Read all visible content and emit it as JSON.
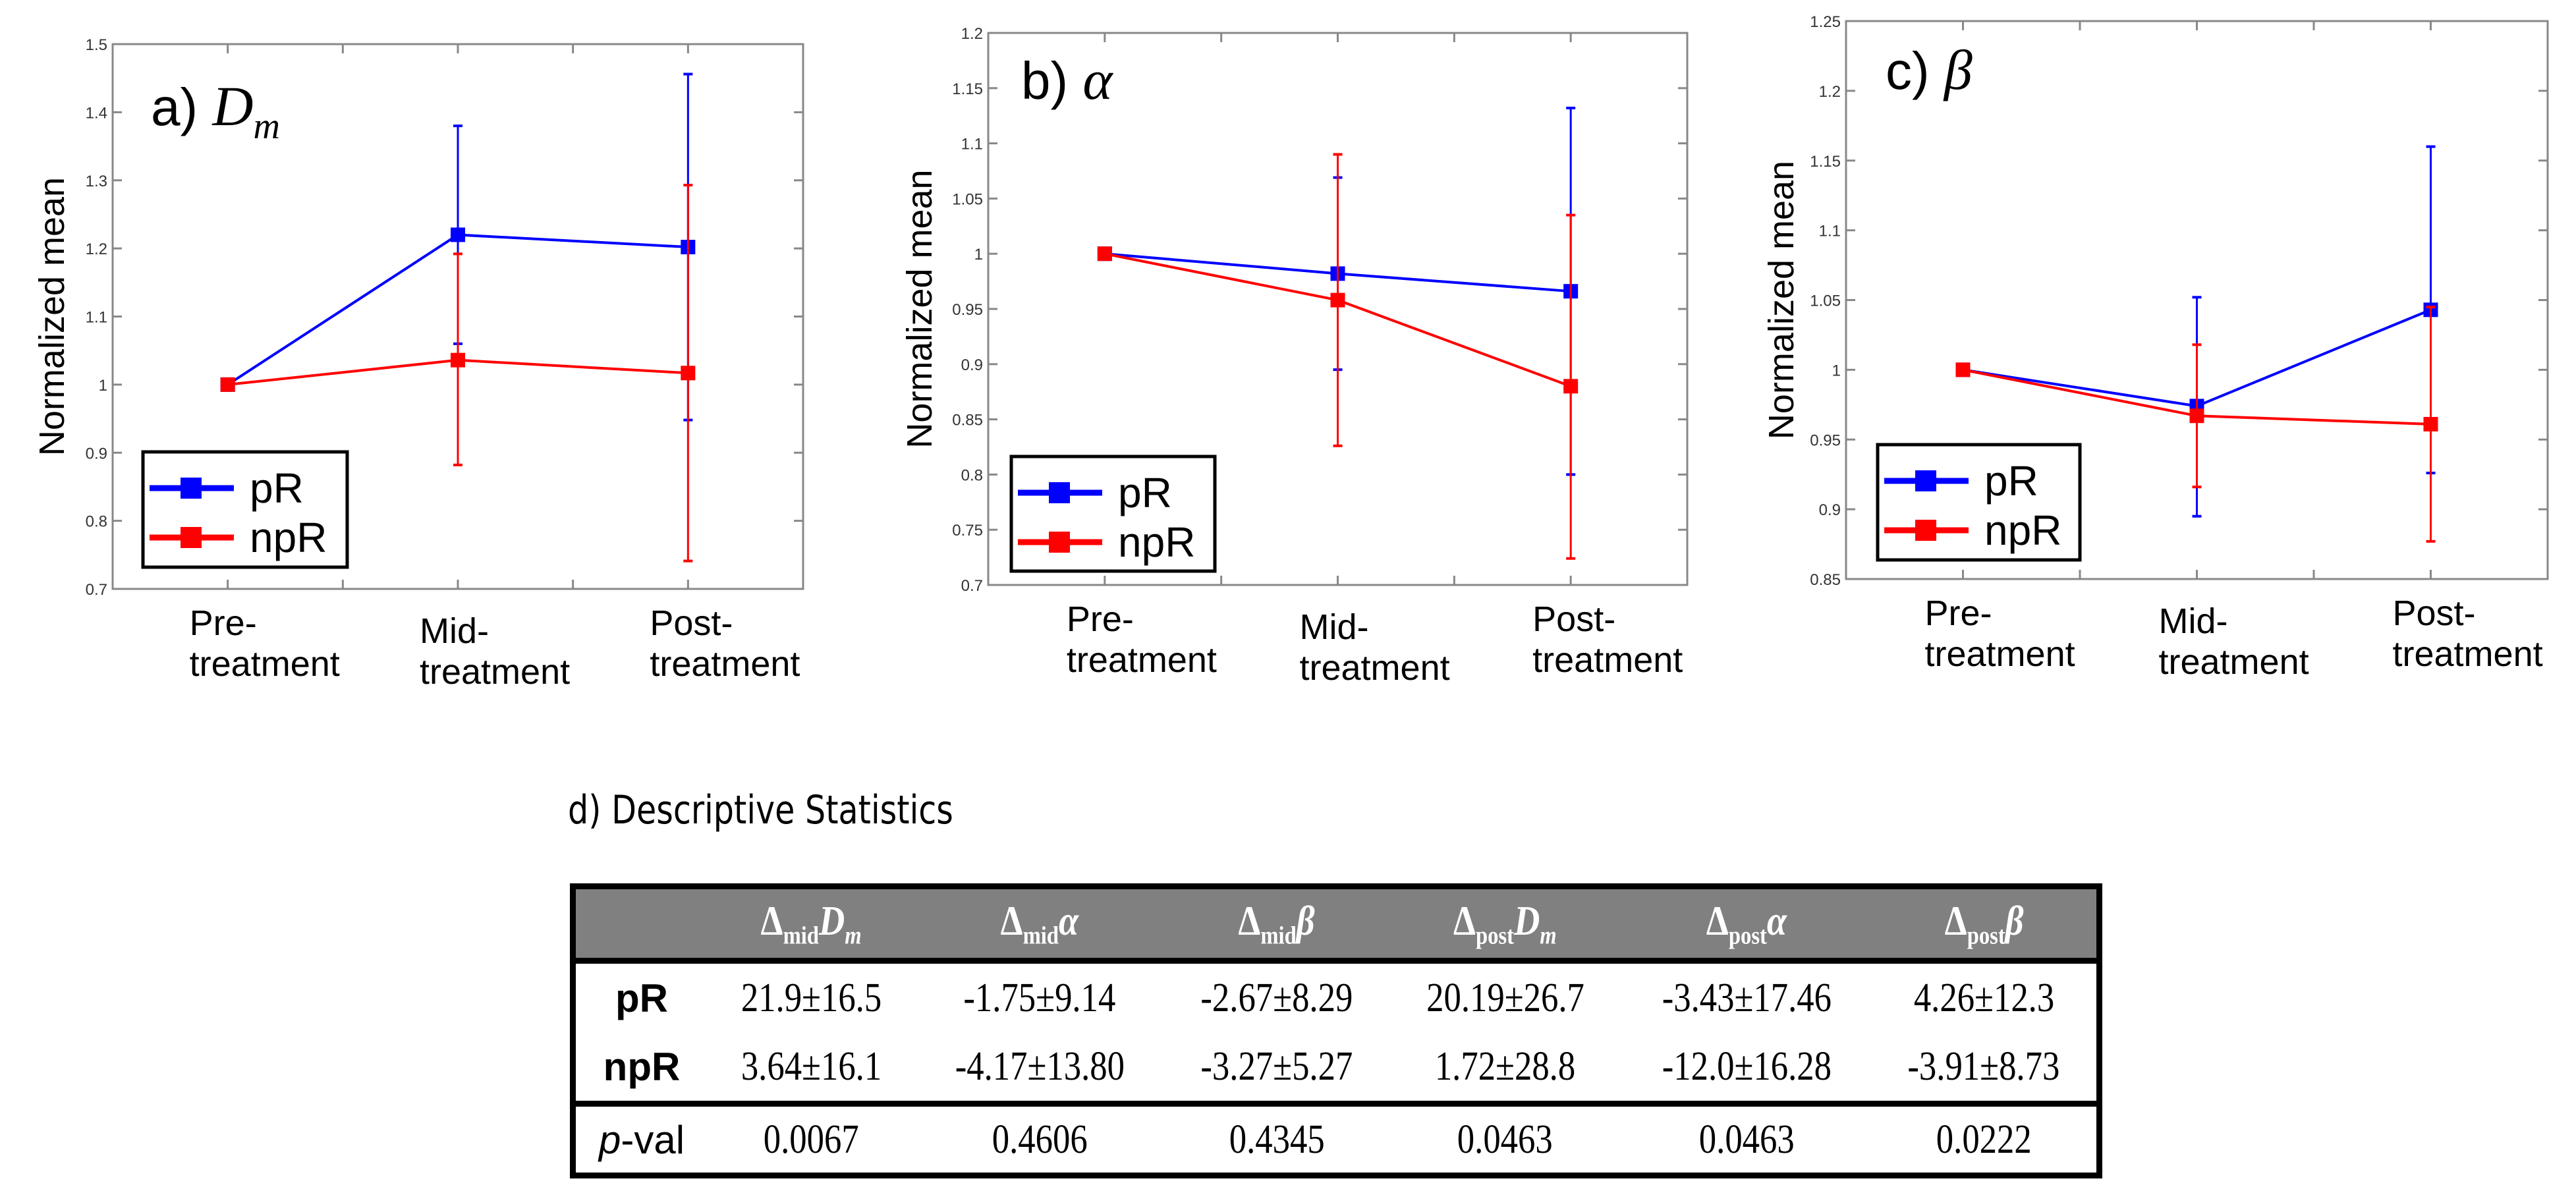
{
  "chart_data": [
    {
      "type": "line",
      "panel_label": "a)",
      "title_var": "D",
      "title_sub": "m",
      "ylabel": "Normalized mean",
      "categories": [
        "Pre-\ntreatment",
        "Mid-\ntreatment",
        "Post-\ntreatment"
      ],
      "ylim": [
        0.7,
        1.5
      ],
      "yticks": [
        0.7,
        0.8,
        0.9,
        1,
        1.1,
        1.2,
        1.3,
        1.4,
        1.5
      ],
      "ytick_labels": [
        "0.7",
        "0.8",
        "0.9",
        "1",
        "1.1",
        "1.2",
        "1.3",
        "1.4",
        "1.5"
      ],
      "legend_placement": "bottom-left",
      "grid": false,
      "series": [
        {
          "name": "pR",
          "color": "#0000ff",
          "values": [
            1.0,
            1.22,
            1.202
          ],
          "err_low": [
            1.0,
            1.06,
            0.948
          ],
          "err_high": [
            1.0,
            1.38,
            1.456
          ]
        },
        {
          "name": "npR",
          "color": "#ff0000",
          "values": [
            1.0,
            1.036,
            1.017
          ],
          "err_low": [
            1.0,
            0.882,
            0.741
          ],
          "err_high": [
            1.0,
            1.192,
            1.293
          ]
        }
      ]
    },
    {
      "type": "line",
      "panel_label": "b)",
      "title_var": "α",
      "title_sub": "",
      "ylabel": "Normalized mean",
      "categories": [
        "Pre-\ntreatment",
        "Mid-\ntreatment",
        "Post-\ntreatment"
      ],
      "ylim": [
        0.7,
        1.2
      ],
      "yticks": [
        0.7,
        0.75,
        0.8,
        0.85,
        0.9,
        0.95,
        1,
        1.05,
        1.1,
        1.15,
        1.2
      ],
      "ytick_labels": [
        "0.7",
        "0.75",
        "0.8",
        "0.85",
        "0.9",
        "0.95",
        "1",
        "1.05",
        "1.1",
        "1.15",
        "1.2"
      ],
      "legend_placement": "bottom-left",
      "grid": false,
      "series": [
        {
          "name": "pR",
          "color": "#0000ff",
          "values": [
            1.0,
            0.982,
            0.966
          ],
          "err_low": [
            1.0,
            0.895,
            0.8
          ],
          "err_high": [
            1.0,
            1.069,
            1.132
          ]
        },
        {
          "name": "npR",
          "color": "#ff0000",
          "values": [
            1.0,
            0.958,
            0.88
          ],
          "err_low": [
            1.0,
            0.826,
            0.724
          ],
          "err_high": [
            1.0,
            1.09,
            1.035
          ]
        }
      ]
    },
    {
      "type": "line",
      "panel_label": "c)",
      "title_var": "β",
      "title_sub": "",
      "ylabel": "Normalized mean",
      "categories": [
        "Pre-\ntreatment",
        "Mid-\ntreatment",
        "Post-\ntreatment"
      ],
      "ylim": [
        0.85,
        1.25
      ],
      "yticks": [
        0.85,
        0.9,
        0.95,
        1,
        1.05,
        1.1,
        1.15,
        1.2,
        1.25
      ],
      "ytick_labels": [
        "0.85",
        "0.9",
        "0.95",
        "1",
        "1.05",
        "1.1",
        "1.15",
        "1.2",
        "1.25"
      ],
      "legend_placement": "bottom-left",
      "grid": false,
      "series": [
        {
          "name": "pR",
          "color": "#0000ff",
          "values": [
            1.0,
            0.974,
            1.043
          ],
          "err_low": [
            1.0,
            0.895,
            0.926
          ],
          "err_high": [
            1.0,
            1.052,
            1.16
          ]
        },
        {
          "name": "npR",
          "color": "#ff0000",
          "values": [
            1.0,
            0.967,
            0.961
          ],
          "err_low": [
            1.0,
            0.916,
            0.877
          ],
          "err_high": [
            1.0,
            1.018,
            1.045
          ]
        }
      ]
    },
    {
      "type": "table",
      "title": "d) Descriptive Statistics",
      "delta_symbol": "Δ",
      "header_color": "#808080",
      "columns": [
        {
          "sub": "mid",
          "var": "D",
          "var_sub": "m"
        },
        {
          "sub": "mid",
          "var": "α",
          "var_sub": ""
        },
        {
          "sub": "mid",
          "var": "β",
          "var_sub": ""
        },
        {
          "sub": "post",
          "var": "D",
          "var_sub": "m"
        },
        {
          "sub": "post",
          "var": "α",
          "var_sub": ""
        },
        {
          "sub": "post",
          "var": "β",
          "var_sub": ""
        }
      ],
      "rows": [
        {
          "label": "pR",
          "cells": [
            "21.9±16.5",
            "-1.75±9.14",
            "-2.67±8.29",
            "20.19±26.7",
            "-3.43±17.46",
            "4.26±12.3"
          ]
        },
        {
          "label": "npR",
          "cells": [
            "3.64±16.1",
            "-4.17±13.80",
            "-3.27±5.27",
            "1.72±28.8",
            "-12.0±16.28",
            "-3.91±8.73"
          ]
        }
      ],
      "pval_row": {
        "label_italic": "p",
        "label_rest": "-val",
        "cells": [
          "0.0067",
          "0.4606",
          "0.4345",
          "0.0463",
          "0.0463",
          "0.0222"
        ]
      }
    }
  ]
}
